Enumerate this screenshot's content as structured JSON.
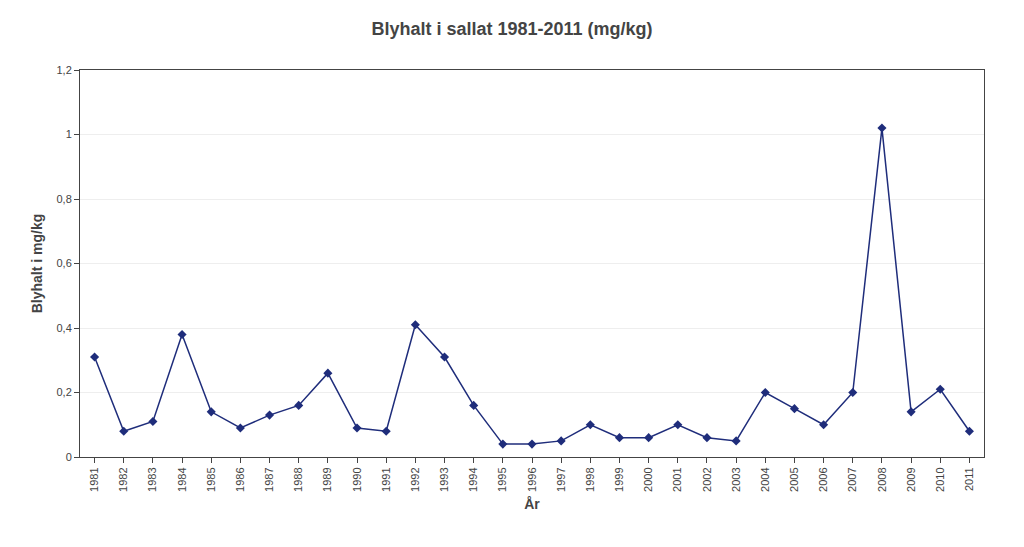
{
  "chart_data": {
    "type": "line",
    "title": "Blyhalt i sallat 1981-2011 (mg/kg)",
    "xlabel": "År",
    "ylabel": "Blyhalt i mg/kg",
    "x": [
      1981,
      1982,
      1983,
      1984,
      1985,
      1986,
      1987,
      1988,
      1989,
      1990,
      1991,
      1992,
      1993,
      1994,
      1995,
      1996,
      1997,
      1998,
      1999,
      2000,
      2001,
      2002,
      2003,
      2004,
      2005,
      2006,
      2007,
      2008,
      2009,
      2010,
      2011
    ],
    "values": [
      0.31,
      0.08,
      0.11,
      0.38,
      0.14,
      0.09,
      0.13,
      0.16,
      0.26,
      0.09,
      0.08,
      0.41,
      0.31,
      0.16,
      0.04,
      0.04,
      0.05,
      0.1,
      0.06,
      0.06,
      0.1,
      0.06,
      0.05,
      0.2,
      0.15,
      0.1,
      0.2,
      1.02,
      0.14,
      0.21,
      0.08
    ],
    "color": "#1F2D7B",
    "marker": "diamond",
    "xlim": [
      1980.5,
      2011.5
    ],
    "xticks": [
      1981,
      1982,
      1983,
      1984,
      1985,
      1986,
      1987,
      1988,
      1989,
      1990,
      1991,
      1992,
      1993,
      1994,
      1995,
      1996,
      1997,
      1998,
      1999,
      2000,
      2001,
      2002,
      2003,
      2004,
      2005,
      2006,
      2007,
      2008,
      2009,
      2010,
      2011
    ],
    "ylim": [
      0,
      1.2
    ],
    "yticks": [
      0,
      {
        "value": 0.2,
        "label": "0,2"
      },
      {
        "value": 0.4,
        "label": "0,4"
      },
      {
        "value": 0.6,
        "label": "0,6"
      },
      {
        "value": 0.8,
        "label": "0,8"
      },
      1,
      {
        "value": 1.2,
        "label": "1,2"
      }
    ],
    "grid": "y"
  }
}
